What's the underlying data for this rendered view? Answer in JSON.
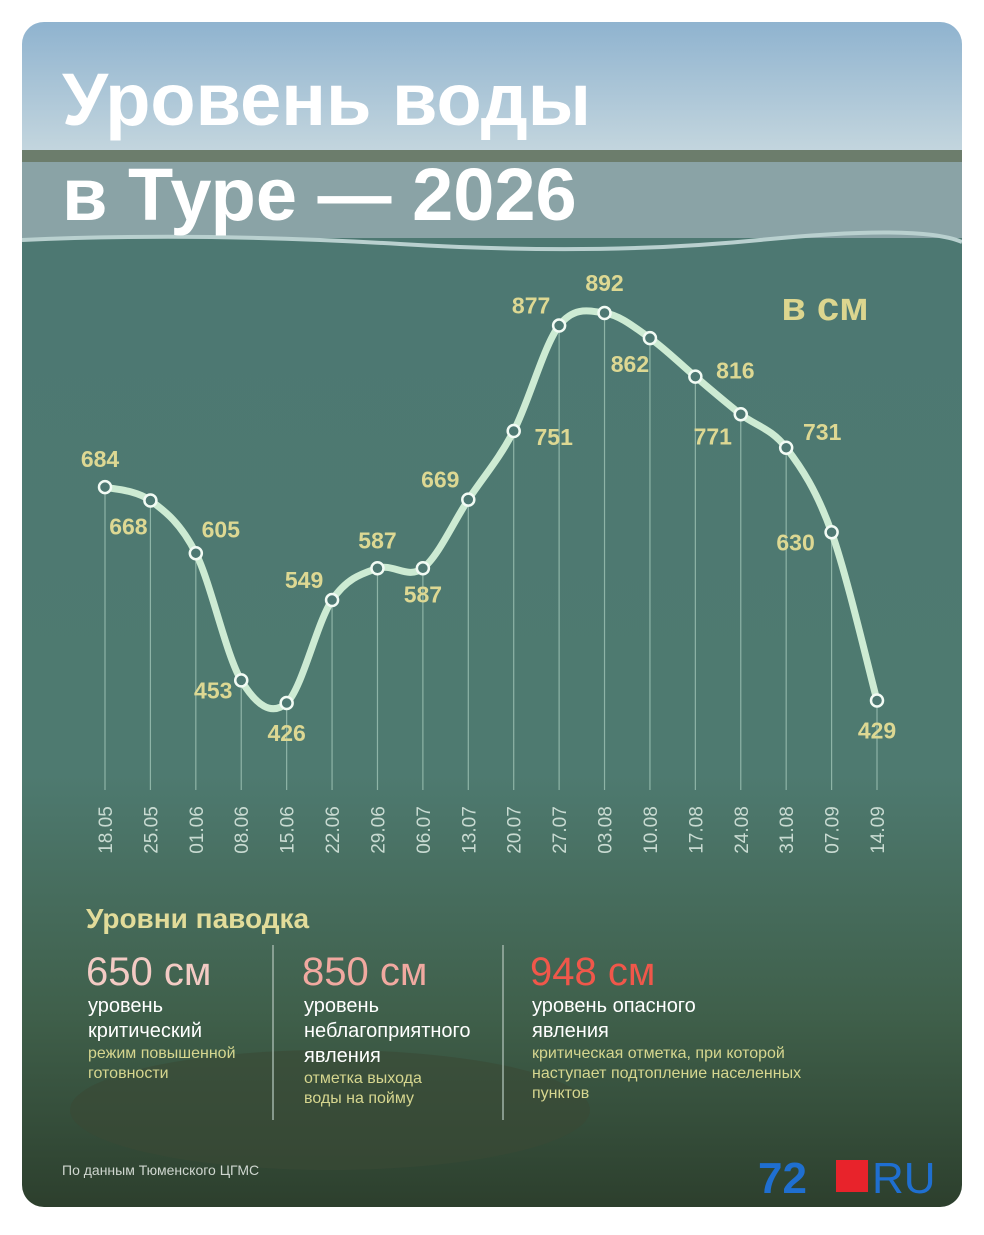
{
  "header": {
    "title_lines": [
      "Уровень воды",
      "в Туре — 2026"
    ]
  },
  "chart_data": {
    "type": "line",
    "unit_label": "в см",
    "categories": [
      "18.05",
      "25.05",
      "01.06",
      "08.06",
      "15.06",
      "22.06",
      "29.06",
      "06.07",
      "13.07",
      "20.07",
      "27.07",
      "03.08",
      "10.08",
      "17.08",
      "24.08",
      "31.08",
      "07.09",
      "14.09"
    ],
    "values": [
      684,
      668,
      605,
      453,
      426,
      549,
      587,
      587,
      669,
      751,
      877,
      892,
      862,
      816,
      771,
      731,
      630,
      429
    ],
    "color": "#cdebd3"
  },
  "flood_levels": {
    "title": "Уровни паводка",
    "items": [
      {
        "level": "650 см",
        "lines": [
          "уровень",
          "критический"
        ],
        "note_lines": [
          "режим повышенной",
          "готовности"
        ]
      },
      {
        "level": "850 см",
        "lines": [
          "уровень",
          "неблагоприятного",
          "явления"
        ],
        "note_lines": [
          "отметка выхода",
          "воды на пойму"
        ]
      },
      {
        "level": "948 см",
        "lines": [
          "уровень опасного",
          "явления"
        ],
        "note_lines": [
          "критическая отметка, при которой",
          "наступает подтопление населенных",
          "пунктов"
        ]
      }
    ]
  },
  "source": "По данным Тюменского ЦГМС",
  "logo": {
    "number": "72",
    "domain": "RU"
  }
}
